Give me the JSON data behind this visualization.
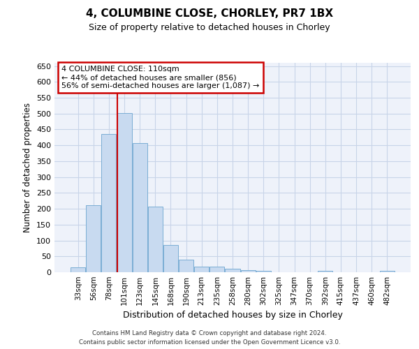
{
  "title": "4, COLUMBINE CLOSE, CHORLEY, PR7 1BX",
  "subtitle": "Size of property relative to detached houses in Chorley",
  "xlabel": "Distribution of detached houses by size in Chorley",
  "ylabel": "Number of detached properties",
  "bar_labels": [
    "33sqm",
    "56sqm",
    "78sqm",
    "101sqm",
    "123sqm",
    "145sqm",
    "168sqm",
    "190sqm",
    "213sqm",
    "235sqm",
    "258sqm",
    "280sqm",
    "302sqm",
    "325sqm",
    "347sqm",
    "370sqm",
    "392sqm",
    "415sqm",
    "437sqm",
    "460sqm",
    "482sqm"
  ],
  "bar_values": [
    15,
    212,
    436,
    502,
    407,
    207,
    85,
    39,
    18,
    17,
    11,
    6,
    5,
    1,
    1,
    1,
    5,
    0,
    0,
    0,
    5
  ],
  "bar_color": "#c8daf0",
  "bar_edge_color": "#7aadd4",
  "vline_x_index": 3,
  "annotation_line1": "4 COLUMBINE CLOSE: 110sqm",
  "annotation_line2": "← 44% of detached houses are smaller (856)",
  "annotation_line3": "56% of semi-detached houses are larger (1,087) →",
  "annotation_box_color": "#ffffff",
  "annotation_border_color": "#cc0000",
  "vline_color": "#cc0000",
  "grid_color": "#c8d4e8",
  "background_color": "#eef2fa",
  "footer_line1": "Contains HM Land Registry data © Crown copyright and database right 2024.",
  "footer_line2": "Contains public sector information licensed under the Open Government Licence v3.0.",
  "ylim": [
    0,
    660
  ],
  "yticks": [
    0,
    50,
    100,
    150,
    200,
    250,
    300,
    350,
    400,
    450,
    500,
    550,
    600,
    650
  ]
}
